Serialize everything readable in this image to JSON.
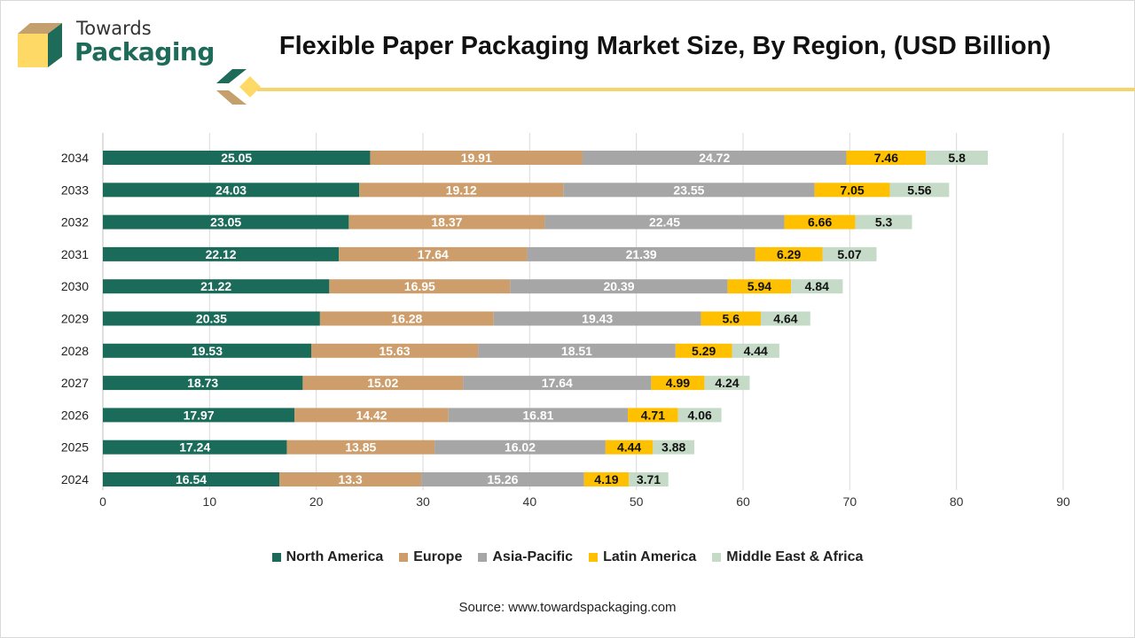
{
  "brand": {
    "line1": "Towards",
    "line2": "Packaging",
    "colors": {
      "green": "#1f6b5a",
      "yellow": "#ffd966",
      "tan": "#c4a06f"
    }
  },
  "source_text": "Source: www.towardspackaging.com",
  "chart_data": {
    "type": "bar",
    "orientation": "horizontal",
    "stacked": true,
    "title": "Flexible Paper Packaging Market Size, By Region, (USD Billion)",
    "xlabel": "",
    "ylabel": "",
    "xlim": [
      0,
      90
    ],
    "xticks": [
      0,
      10,
      20,
      30,
      40,
      50,
      60,
      70,
      80,
      90
    ],
    "grid": "vertical",
    "legend_position": "bottom",
    "categories": [
      "2034",
      "2033",
      "2032",
      "2031",
      "2030",
      "2029",
      "2028",
      "2027",
      "2026",
      "2025",
      "2024"
    ],
    "series": [
      {
        "name": "North America",
        "color": "#1b6b5a",
        "label_color": "#ffffff",
        "values": [
          25.05,
          24.03,
          23.05,
          22.12,
          21.22,
          20.35,
          19.53,
          18.73,
          17.97,
          17.24,
          16.54
        ]
      },
      {
        "name": "Europe",
        "color": "#cd9e6b",
        "label_color": "#ffffff",
        "values": [
          19.91,
          19.12,
          18.37,
          17.64,
          16.95,
          16.28,
          15.63,
          15.02,
          14.42,
          13.85,
          13.3
        ]
      },
      {
        "name": "Asia-Pacific",
        "color": "#a6a6a6",
        "label_color": "#ffffff",
        "values": [
          24.72,
          23.55,
          22.45,
          21.39,
          20.39,
          19.43,
          18.51,
          17.64,
          16.81,
          16.02,
          15.26
        ]
      },
      {
        "name": "Latin America",
        "color": "#ffc000",
        "label_color": "#111111",
        "values": [
          7.46,
          7.05,
          6.66,
          6.29,
          5.94,
          5.6,
          5.29,
          4.99,
          4.71,
          4.44,
          4.19
        ]
      },
      {
        "name": "Middle East & Africa",
        "color": "#c5dbc8",
        "label_color": "#111111",
        "values": [
          5.8,
          5.56,
          5.3,
          5.07,
          4.84,
          4.64,
          4.44,
          4.24,
          4.06,
          3.88,
          3.71
        ]
      }
    ]
  }
}
